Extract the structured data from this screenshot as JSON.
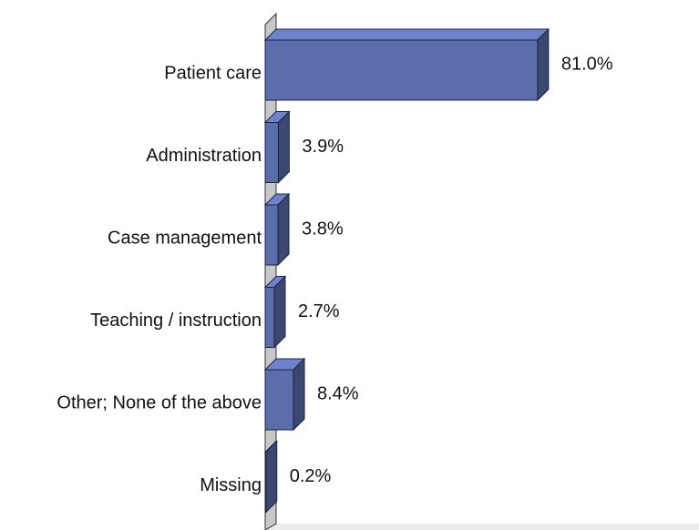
{
  "chart_data": {
    "type": "bar",
    "orientation": "horizontal",
    "categories": [
      "Patient care",
      "Administration",
      "Case management",
      "Teaching / instruction",
      "Other; None of the above",
      "Missing"
    ],
    "values": [
      81.0,
      3.9,
      3.8,
      2.7,
      8.4,
      0.2
    ],
    "value_labels": [
      "81.0%",
      "3.9%",
      "3.8%",
      "2.7%",
      "8.4%",
      "0.2%"
    ],
    "color": "#5b6eab"
  }
}
